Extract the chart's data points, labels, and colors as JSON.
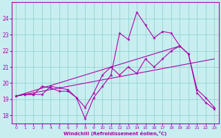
{
  "xlabel": "Windchill (Refroidissement éolien,°C)",
  "bg_color": "#c8eef0",
  "line_color": "#aa00aa",
  "grid_color": "#88cccc",
  "x_data": [
    0,
    1,
    2,
    3,
    4,
    5,
    6,
    7,
    8,
    9,
    10,
    11,
    12,
    13,
    14,
    15,
    16,
    17,
    18,
    19,
    20,
    21,
    22,
    23
  ],
  "series1": [
    19.2,
    19.3,
    19.3,
    19.3,
    19.8,
    19.7,
    19.6,
    19.1,
    17.8,
    19.1,
    19.8,
    20.5,
    23.1,
    22.7,
    24.4,
    23.6,
    22.8,
    23.2,
    23.1,
    22.3,
    21.8,
    19.6,
    19.1,
    18.5
  ],
  "series2": [
    19.2,
    19.3,
    19.3,
    19.8,
    19.7,
    19.5,
    19.5,
    19.1,
    18.5,
    19.4,
    20.5,
    21.0,
    20.5,
    21.0,
    20.6,
    21.5,
    21.0,
    21.5,
    22.0,
    22.3,
    21.8,
    19.4,
    18.8,
    18.4
  ],
  "line3_x": [
    0,
    19
  ],
  "line3_y": [
    19.2,
    22.3
  ],
  "line4_x": [
    0,
    23
  ],
  "line4_y": [
    19.2,
    21.5
  ],
  "ylim": [
    17.5,
    25.0
  ],
  "xlim": [
    -0.5,
    23.5
  ],
  "yticks": [
    18,
    19,
    20,
    21,
    22,
    23,
    24
  ],
  "xticks": [
    0,
    1,
    2,
    3,
    4,
    5,
    6,
    7,
    8,
    9,
    10,
    11,
    12,
    13,
    14,
    15,
    16,
    17,
    18,
    19,
    20,
    21,
    22,
    23
  ]
}
